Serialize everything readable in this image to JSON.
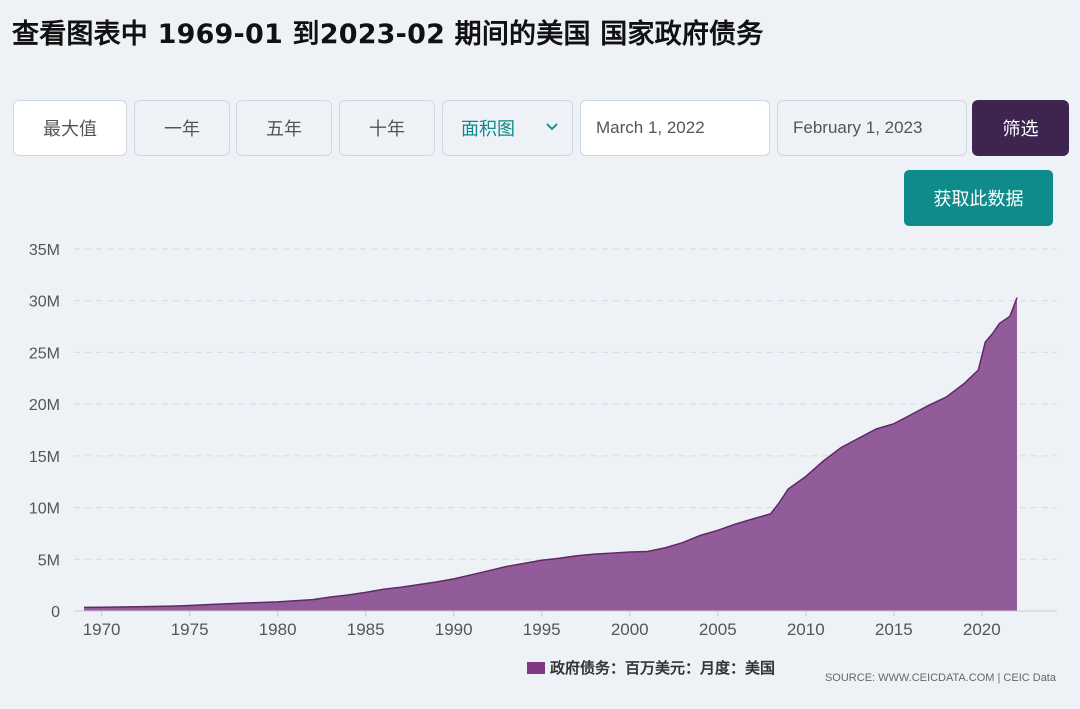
{
  "header": {
    "title": "查看图表中 1969-01 到2023-02 期间的美国 国家政府债务"
  },
  "controls": {
    "ranges": [
      "最大值",
      "一年",
      "五年",
      "十年"
    ],
    "chart_type": "面积图",
    "start_date": "March 1, 2022",
    "end_date": "February 1, 2023",
    "filter_label": "筛选",
    "get_data_label": "获取此数据"
  },
  "colors": {
    "area": "#7e3a86",
    "line": "#5e2a66",
    "accent": "#0e8b8a",
    "filter": "#3d2550"
  },
  "chart_data": {
    "type": "area",
    "title": "",
    "xlabel": "",
    "ylabel": "",
    "xlim": [
      1969,
      2023
    ],
    "ylim": [
      0,
      35000000
    ],
    "y_ticks": [
      {
        "value": 0,
        "label": "0"
      },
      {
        "value": 5000000,
        "label": "5M"
      },
      {
        "value": 10000000,
        "label": "10M"
      },
      {
        "value": 15000000,
        "label": "15M"
      },
      {
        "value": 20000000,
        "label": "20M"
      },
      {
        "value": 25000000,
        "label": "25M"
      },
      {
        "value": 30000000,
        "label": "30M"
      },
      {
        "value": 35000000,
        "label": "35M"
      }
    ],
    "x_ticks": [
      "1970",
      "1975",
      "1980",
      "1985",
      "1990",
      "1995",
      "2000",
      "2005",
      "2010",
      "2015",
      "2020"
    ],
    "grid": true,
    "legend_position": "bottom",
    "series": [
      {
        "name": "政府债务：百万美元：月度：美国",
        "points": [
          [
            1969.0,
            350000
          ],
          [
            1970.0,
            370000
          ],
          [
            1972.0,
            420000
          ],
          [
            1974.0,
            470000
          ],
          [
            1975.0,
            530000
          ],
          [
            1976.0,
            620000
          ],
          [
            1978.0,
            760000
          ],
          [
            1980.0,
            880000
          ],
          [
            1982.0,
            1100000
          ],
          [
            1983.0,
            1350000
          ],
          [
            1984.0,
            1550000
          ],
          [
            1985.0,
            1800000
          ],
          [
            1986.0,
            2100000
          ],
          [
            1987.0,
            2300000
          ],
          [
            1988.0,
            2550000
          ],
          [
            1989.0,
            2800000
          ],
          [
            1990.0,
            3100000
          ],
          [
            1991.0,
            3500000
          ],
          [
            1992.0,
            3900000
          ],
          [
            1993.0,
            4300000
          ],
          [
            1994.0,
            4600000
          ],
          [
            1995.0,
            4900000
          ],
          [
            1996.0,
            5100000
          ],
          [
            1997.0,
            5350000
          ],
          [
            1998.0,
            5500000
          ],
          [
            1999.0,
            5600000
          ],
          [
            2000.0,
            5700000
          ],
          [
            2001.0,
            5750000
          ],
          [
            2002.0,
            6100000
          ],
          [
            2003.0,
            6600000
          ],
          [
            2004.0,
            7300000
          ],
          [
            2005.0,
            7800000
          ],
          [
            2006.0,
            8400000
          ],
          [
            2007.0,
            8900000
          ],
          [
            2008.0,
            9400000
          ],
          [
            2008.5,
            10500000
          ],
          [
            2009.0,
            11800000
          ],
          [
            2010.0,
            13000000
          ],
          [
            2011.0,
            14500000
          ],
          [
            2012.0,
            15800000
          ],
          [
            2013.0,
            16700000
          ],
          [
            2014.0,
            17600000
          ],
          [
            2015.0,
            18100000
          ],
          [
            2016.0,
            19000000
          ],
          [
            2017.0,
            19900000
          ],
          [
            2018.0,
            20700000
          ],
          [
            2019.0,
            22000000
          ],
          [
            2019.8,
            23300000
          ],
          [
            2020.2,
            26000000
          ],
          [
            2020.6,
            26800000
          ],
          [
            2021.0,
            27800000
          ],
          [
            2021.6,
            28500000
          ],
          [
            2022.0,
            30300000
          ]
        ]
      }
    ]
  },
  "legend": {
    "label": "政府债务：百万美元：月度：美国"
  },
  "footer": {
    "source": "SOURCE: WWW.CEICDATA.COM | CEIC Data"
  }
}
